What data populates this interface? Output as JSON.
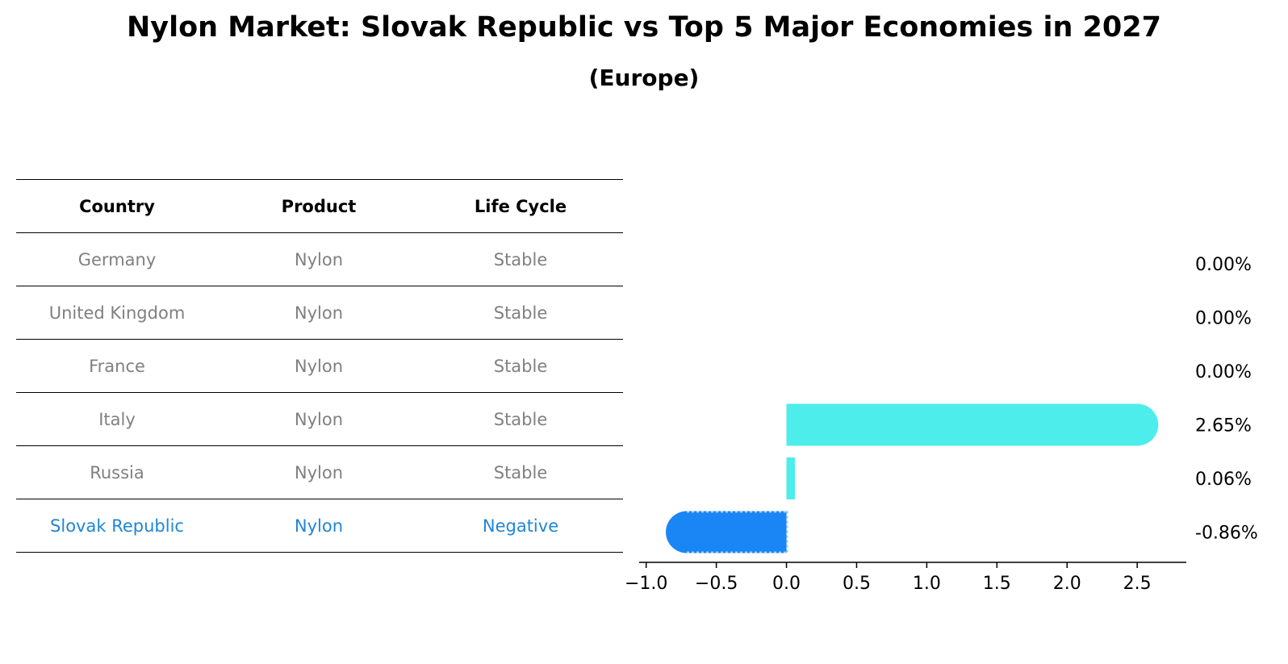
{
  "chart_data": {
    "type": "bar",
    "orientation": "horizontal",
    "title": "Nylon Market: Slovak Republic vs Top 5 Major Economies in 2027",
    "subtitle": "(Europe)",
    "table": {
      "columns": [
        "Country",
        "Product",
        "Life Cycle"
      ],
      "rows": [
        [
          "Germany",
          "Nylon",
          "Stable"
        ],
        [
          "United Kingdom",
          "Nylon",
          "Stable"
        ],
        [
          "France",
          "Nylon",
          "Stable"
        ],
        [
          "Italy",
          "Nylon",
          "Stable"
        ],
        [
          "Russia",
          "Nylon",
          "Stable"
        ],
        [
          "Slovak Republic",
          "Nylon",
          "Negative"
        ]
      ],
      "highlight_row": 5
    },
    "categories": [
      "Germany",
      "United Kingdom",
      "France",
      "Italy",
      "Russia",
      "Slovak Republic"
    ],
    "values": [
      0.0,
      0.0,
      0.0,
      2.65,
      0.06,
      -0.86
    ],
    "value_labels": [
      "0.00%",
      "0.00%",
      "0.00%",
      "2.65%",
      "0.06%",
      "-0.86%"
    ],
    "xlim": [
      -1.05,
      2.85
    ],
    "xticks": [
      -1.0,
      -0.5,
      0.0,
      0.5,
      1.0,
      1.5,
      2.0,
      2.5
    ],
    "xtick_labels": [
      "−1.0",
      "−0.5",
      "0.0",
      "0.5",
      "1.0",
      "1.5",
      "2.0",
      "2.5"
    ],
    "grid": false,
    "colors": {
      "positive": "#4dedeb",
      "highlight": "#1a86f5",
      "highlight_text": "#1e86d6",
      "muted_text": "#808080"
    }
  }
}
